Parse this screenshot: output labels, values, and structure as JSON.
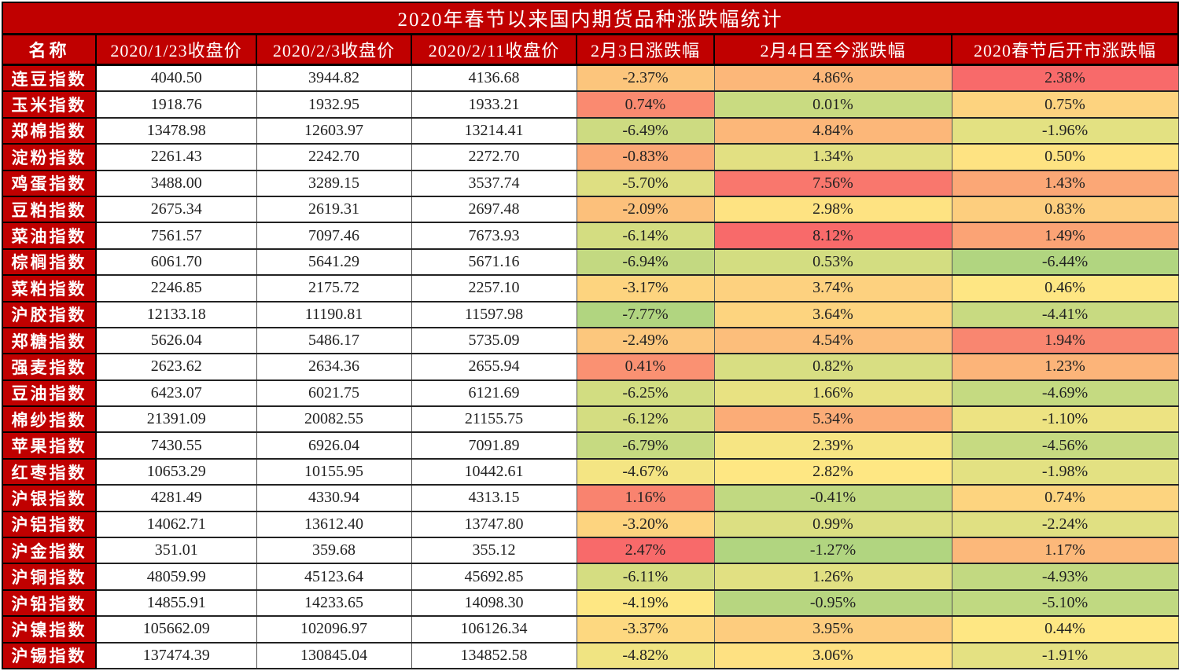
{
  "title": "2020年春节以来国内期货品种涨跌幅统计",
  "headers": [
    "名称",
    "2020/1/23收盘价",
    "2020/2/3收盘价",
    "2020/2/11收盘价",
    "2月3日涨跌幅",
    "2月4日至今涨跌幅",
    "2020春节后开市涨跌幅"
  ],
  "color_scale": {
    "low": "#b1d580",
    "mid": "#fee783",
    "high": "#f86a6a"
  },
  "rows": [
    [
      "连豆指数",
      "4040.50",
      "3944.82",
      "4136.68",
      "-2.37%",
      "4.86%",
      "2.38%"
    ],
    [
      "玉米指数",
      "1918.76",
      "1932.95",
      "1933.21",
      "0.74%",
      "0.01%",
      "0.75%"
    ],
    [
      "郑棉指数",
      "13478.98",
      "12603.97",
      "13214.41",
      "-6.49%",
      "4.84%",
      "-1.96%"
    ],
    [
      "淀粉指数",
      "2261.43",
      "2242.70",
      "2272.70",
      "-0.83%",
      "1.34%",
      "0.50%"
    ],
    [
      "鸡蛋指数",
      "3488.00",
      "3289.15",
      "3537.74",
      "-5.70%",
      "7.56%",
      "1.43%"
    ],
    [
      "豆粕指数",
      "2675.34",
      "2619.31",
      "2697.48",
      "-2.09%",
      "2.98%",
      "0.83%"
    ],
    [
      "菜油指数",
      "7561.57",
      "7097.46",
      "7673.93",
      "-6.14%",
      "8.12%",
      "1.49%"
    ],
    [
      "棕榈指数",
      "6061.70",
      "5641.29",
      "5671.16",
      "-6.94%",
      "0.53%",
      "-6.44%"
    ],
    [
      "菜粕指数",
      "2246.85",
      "2175.72",
      "2257.10",
      "-3.17%",
      "3.74%",
      "0.46%"
    ],
    [
      "沪胶指数",
      "12133.18",
      "11190.81",
      "11597.98",
      "-7.77%",
      "3.64%",
      "-4.41%"
    ],
    [
      "郑糖指数",
      "5626.04",
      "5486.17",
      "5735.09",
      "-2.49%",
      "4.54%",
      "1.94%"
    ],
    [
      "强麦指数",
      "2623.62",
      "2634.36",
      "2655.94",
      "0.41%",
      "0.82%",
      "1.23%"
    ],
    [
      "豆油指数",
      "6423.07",
      "6021.75",
      "6121.69",
      "-6.25%",
      "1.66%",
      "-4.69%"
    ],
    [
      "棉纱指数",
      "21391.09",
      "20082.55",
      "21155.75",
      "-6.12%",
      "5.34%",
      "-1.10%"
    ],
    [
      "苹果指数",
      "7430.55",
      "6926.04",
      "7091.89",
      "-6.79%",
      "2.39%",
      "-4.56%"
    ],
    [
      "红枣指数",
      "10653.29",
      "10155.95",
      "10442.61",
      "-4.67%",
      "2.82%",
      "-1.98%"
    ],
    [
      "沪银指数",
      "4281.49",
      "4330.94",
      "4313.15",
      "1.16%",
      "-0.41%",
      "0.74%"
    ],
    [
      "沪铝指数",
      "14062.71",
      "13612.40",
      "13747.80",
      "-3.20%",
      "0.99%",
      "-2.24%"
    ],
    [
      "沪金指数",
      "351.01",
      "359.68",
      "355.12",
      "2.47%",
      "-1.27%",
      "1.17%"
    ],
    [
      "沪铜指数",
      "48059.99",
      "45123.64",
      "45692.85",
      "-6.11%",
      "1.26%",
      "-4.93%"
    ],
    [
      "沪铅指数",
      "14855.91",
      "14233.65",
      "14098.30",
      "-4.19%",
      "-0.95%",
      "-5.10%"
    ],
    [
      "沪镍指数",
      "105662.09",
      "102096.97",
      "106126.34",
      "-3.37%",
      "3.95%",
      "0.44%"
    ],
    [
      "沪锡指数",
      "137474.39",
      "130845.04",
      "134852.58",
      "-4.82%",
      "3.06%",
      "-1.91%"
    ]
  ]
}
